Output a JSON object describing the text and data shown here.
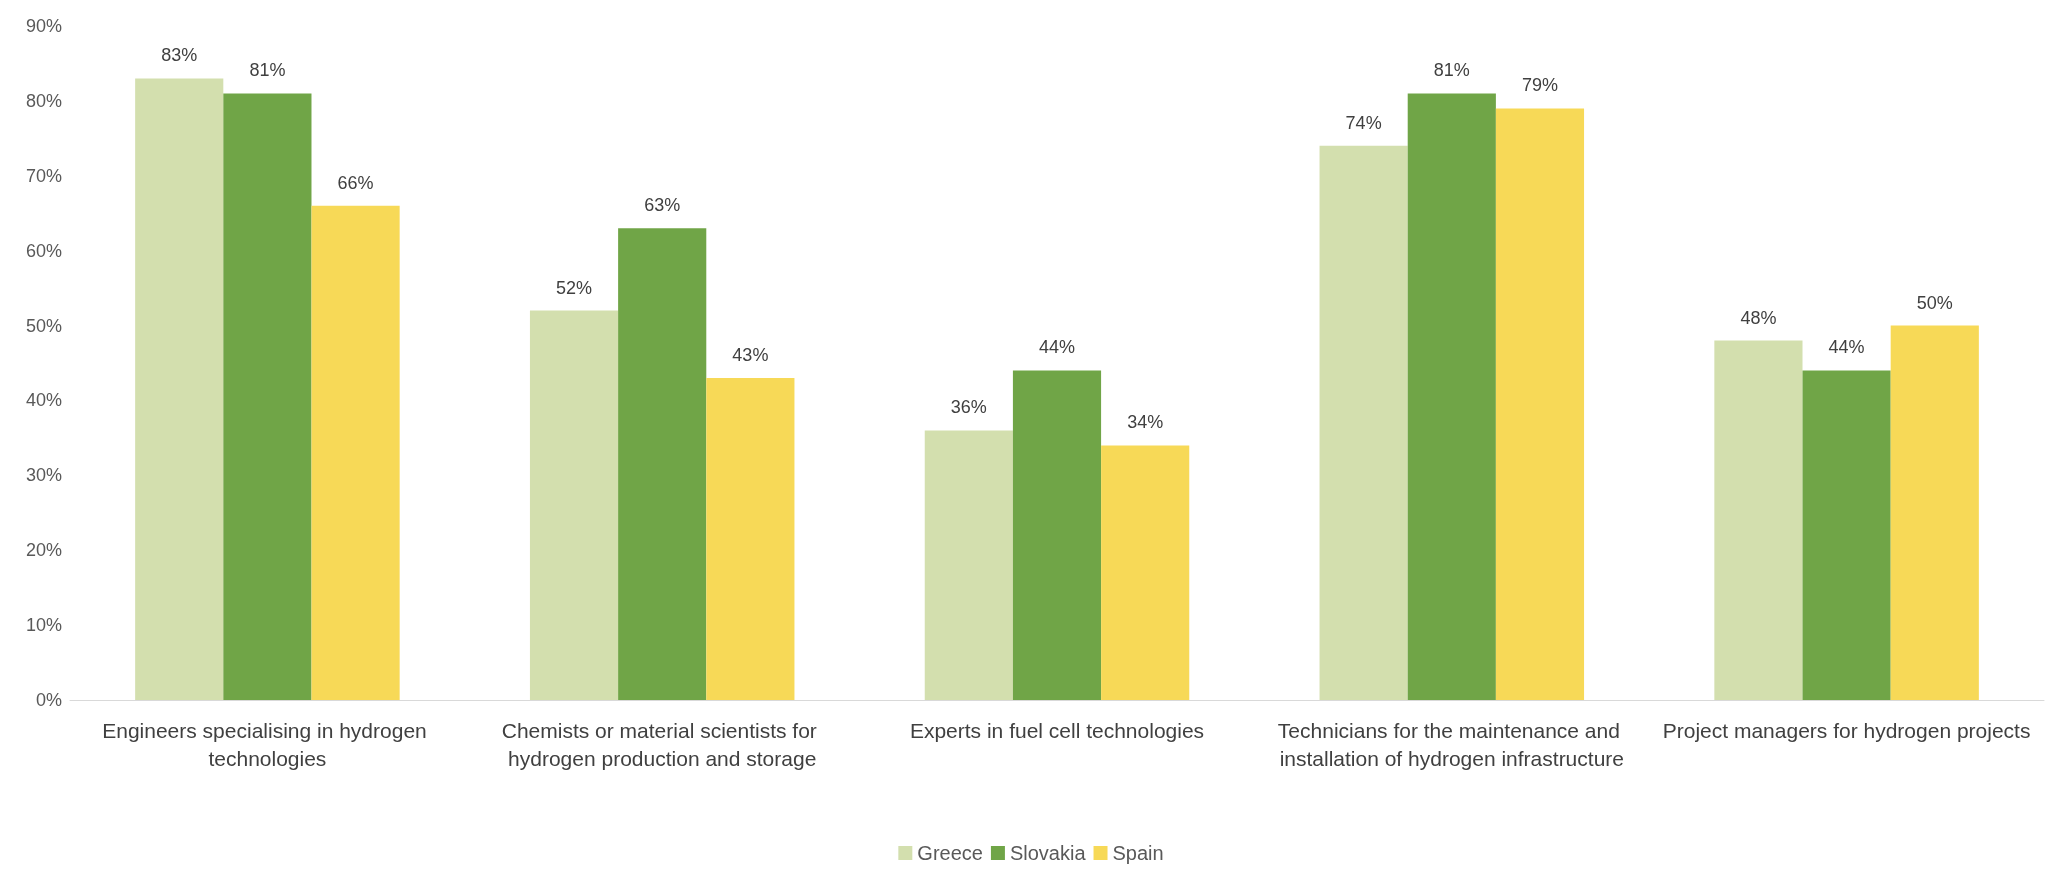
{
  "chart_data": {
    "type": "bar",
    "categories": [
      "Engineers specialising in hydrogen technologies",
      "Chemists or material scientists for hydrogen production and storage",
      "Experts in fuel cell technologies",
      "Technicians for the maintenance and installation of hydrogen infrastructure",
      "Project managers for hydrogen projects"
    ],
    "series": [
      {
        "name": "Greece",
        "color": "#d3dfae",
        "values": [
          83,
          52,
          36,
          74,
          48
        ],
        "value_labels": [
          "83%",
          "52%",
          "36%",
          "74%",
          "48%"
        ]
      },
      {
        "name": "Slovakia",
        "color": "#70a547",
        "values": [
          81,
          63,
          44,
          81,
          44
        ],
        "value_labels": [
          "81%",
          "63%",
          "44%",
          "81%",
          "44%"
        ]
      },
      {
        "name": "Spain",
        "color": "#f7d957",
        "values": [
          66,
          43,
          34,
          79,
          50
        ],
        "value_labels": [
          "66%",
          "43%",
          "34%",
          "79%",
          "50%"
        ]
      }
    ],
    "ylim": [
      0,
      90
    ],
    "yticks": [
      {
        "value": 0,
        "label": "0%"
      },
      {
        "value": 10,
        "label": "10%"
      },
      {
        "value": 20,
        "label": "20%"
      },
      {
        "value": 30,
        "label": "30%"
      },
      {
        "value": 40,
        "label": "40%"
      },
      {
        "value": 50,
        "label": "50%"
      },
      {
        "value": 60,
        "label": "60%"
      },
      {
        "value": 70,
        "label": "70%"
      },
      {
        "value": 80,
        "label": "80%"
      },
      {
        "value": 90,
        "label": "90%"
      }
    ],
    "grid": false,
    "legend": "bottom"
  }
}
